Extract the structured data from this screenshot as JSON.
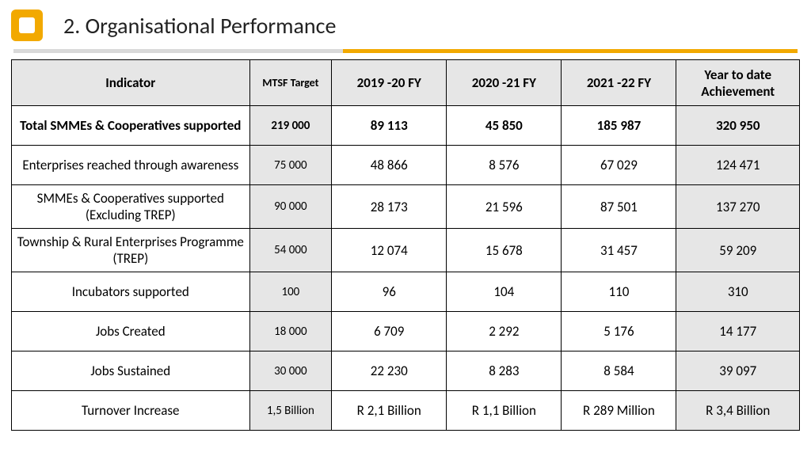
{
  "title": "2. Organisational Performance",
  "colors": {
    "accent": "#f2a900",
    "divider_light": "#d9d9d9",
    "cell_shade": "#e6e6e6",
    "border": "#000000",
    "text": "#000000"
  },
  "table": {
    "columns": [
      {
        "key": "indicator",
        "label": "Indicator"
      },
      {
        "key": "mtsf",
        "label": "MTSF Target"
      },
      {
        "key": "fy1",
        "label": "2019 -20 FY"
      },
      {
        "key": "fy2",
        "label": "2020 -21 FY"
      },
      {
        "key": "fy3",
        "label": "2021 -22 FY"
      },
      {
        "key": "ytd",
        "label": "Year to date Achievement"
      }
    ],
    "rows": [
      {
        "indicator": "Total SMMEs & Cooperatives supported",
        "mtsf": "219 000",
        "fy1": "89 113",
        "fy2": "45 850",
        "fy3": "185 987",
        "ytd": "320 950",
        "bold": true
      },
      {
        "indicator": "Enterprises reached through awareness",
        "mtsf": "75 000",
        "fy1": "48 866",
        "fy2": "8 576",
        "fy3": "67 029",
        "ytd": "124 471",
        "bold": false
      },
      {
        "indicator": "SMMEs & Cooperatives supported (Excluding TREP)",
        "mtsf": "90 000",
        "fy1": "28 173",
        "fy2": "21 596",
        "fy3": "87 501",
        "ytd": "137 270",
        "bold": false
      },
      {
        "indicator": "Township & Rural Enterprises Programme (TREP)",
        "mtsf": "54 000",
        "fy1": "12 074",
        "fy2": "15 678",
        "fy3": "31 457",
        "ytd": "59 209",
        "bold": false
      },
      {
        "indicator": "Incubators supported",
        "mtsf": "100",
        "fy1": "96",
        "fy2": "104",
        "fy3": "110",
        "ytd": "310",
        "bold": false
      },
      {
        "indicator": "Jobs Created",
        "mtsf": "18 000",
        "fy1": "6 709",
        "fy2": "2 292",
        "fy3": "5 176",
        "ytd": "14 177",
        "bold": false
      },
      {
        "indicator": "Jobs Sustained",
        "mtsf": "30 000",
        "fy1": "22 230",
        "fy2": "8 283",
        "fy3": "8 584",
        "ytd": "39 097",
        "bold": false
      },
      {
        "indicator": "Turnover Increase",
        "mtsf": "1,5 Billion",
        "fy1": "R 2,1 Billion",
        "fy2": "R 1,1 Billion",
        "fy3": "R 289 Million",
        "ytd": "R 3,4 Billion",
        "bold": false
      }
    ]
  }
}
